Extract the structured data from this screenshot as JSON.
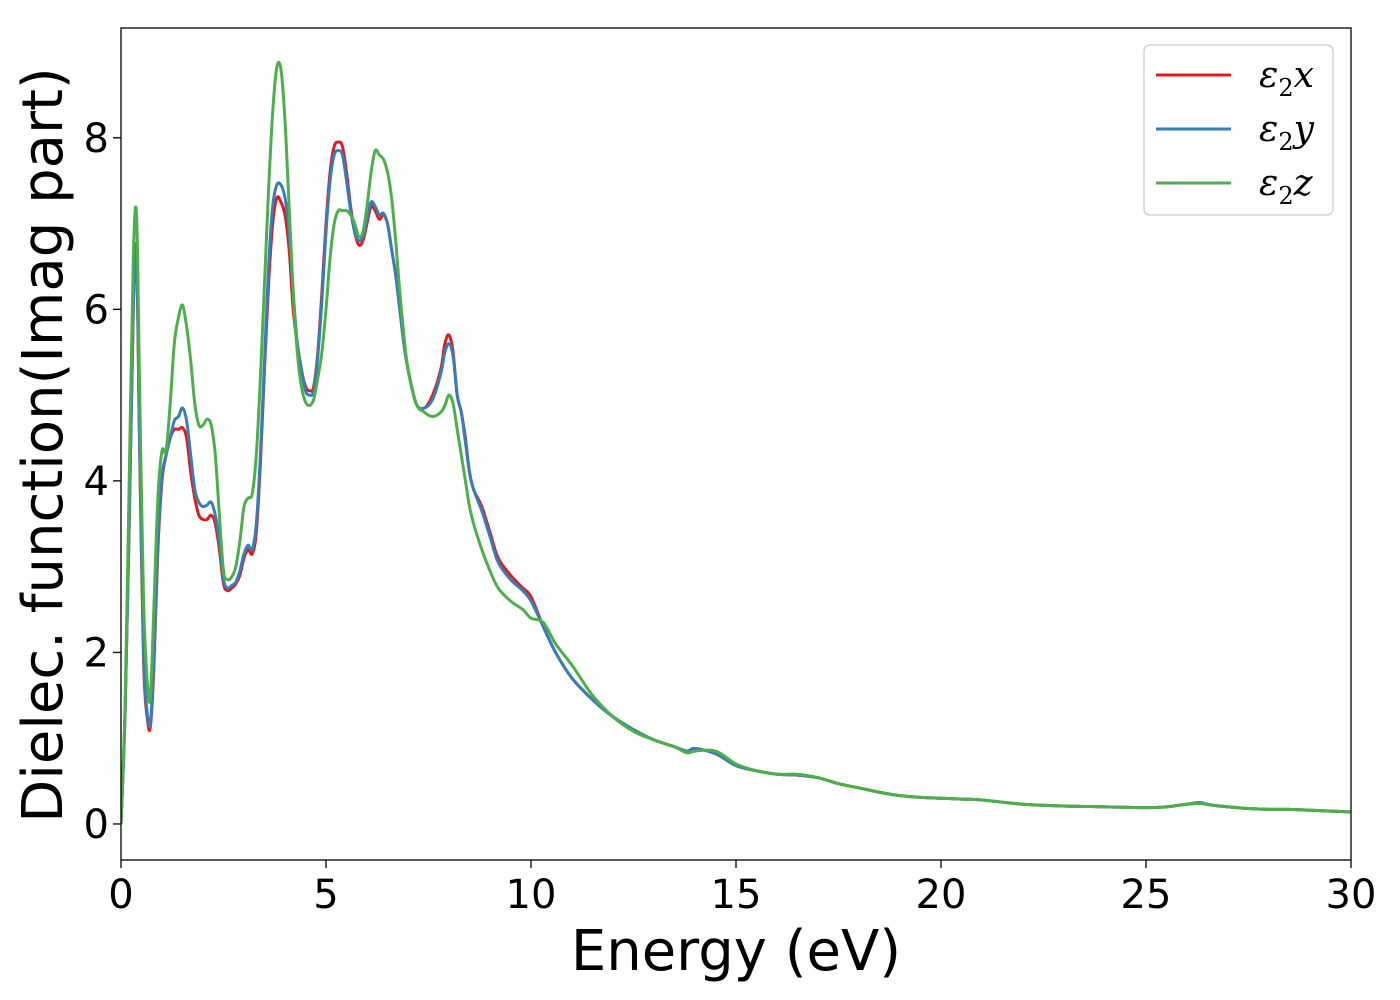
{
  "chart_data": {
    "type": "line",
    "xlabel": "Energy (eV)",
    "ylabel": "Dielec. function(Imag part)",
    "xlim": [
      0,
      30
    ],
    "ylim": [
      -0.42,
      9.28
    ],
    "xticks": [
      0,
      5,
      10,
      15,
      20,
      25,
      30
    ],
    "yticks": [
      0,
      2,
      4,
      6,
      8
    ],
    "grid": false,
    "legend_position": "top-right",
    "series": [
      {
        "name": "ε2x",
        "legend": {
          "base": "ε",
          "sub": "2",
          "var": "x"
        },
        "color": "#e41a1c",
        "x": [
          0,
          0.1,
          0.2,
          0.3,
          0.38,
          0.45,
          0.55,
          0.65,
          0.72,
          0.8,
          0.9,
          1.0,
          1.1,
          1.2,
          1.3,
          1.4,
          1.5,
          1.6,
          1.7,
          1.8,
          1.9,
          2.0,
          2.1,
          2.2,
          2.3,
          2.4,
          2.5,
          2.6,
          2.7,
          2.8,
          2.9,
          3.0,
          3.1,
          3.2,
          3.3,
          3.4,
          3.5,
          3.6,
          3.7,
          3.8,
          3.9,
          4.0,
          4.1,
          4.2,
          4.3,
          4.4,
          4.5,
          4.6,
          4.7,
          4.8,
          4.9,
          5.0,
          5.1,
          5.2,
          5.3,
          5.4,
          5.5,
          5.6,
          5.7,
          5.8,
          5.9,
          6.0,
          6.1,
          6.2,
          6.3,
          6.4,
          6.5,
          6.6,
          6.7,
          6.8,
          6.9,
          7.0,
          7.2,
          7.4,
          7.6,
          7.8,
          7.9,
          8.0,
          8.1,
          8.2,
          8.3,
          8.4,
          8.5,
          8.6,
          8.8,
          9.0,
          9.2,
          9.5,
          9.8,
          10.0,
          10.3,
          10.6,
          11.0,
          11.5,
          12.0,
          12.5,
          13.0,
          13.5,
          13.8,
          14.0,
          14.5,
          15.0,
          15.5,
          16.0,
          16.5,
          17.0,
          17.5,
          18.0,
          18.5,
          19.0,
          19.5,
          20.0,
          20.5,
          21.0,
          22.0,
          23.0,
          24.0,
          25.0,
          25.5,
          26.0,
          26.3,
          26.6,
          27.0,
          27.5,
          28.0,
          28.5,
          29.0,
          29.5,
          30.0
        ],
        "y": [
          0.0,
          1.3,
          3.5,
          6.0,
          6.6,
          4.5,
          1.9,
          1.2,
          1.15,
          1.8,
          3.2,
          4.0,
          4.3,
          4.5,
          4.6,
          4.6,
          4.62,
          4.5,
          4.1,
          3.8,
          3.6,
          3.55,
          3.55,
          3.6,
          3.5,
          3.2,
          2.8,
          2.72,
          2.75,
          2.8,
          2.9,
          3.1,
          3.2,
          3.15,
          3.4,
          4.2,
          5.3,
          6.3,
          7.0,
          7.3,
          7.25,
          7.1,
          6.7,
          6.0,
          5.6,
          5.3,
          5.1,
          5.05,
          5.1,
          5.5,
          6.2,
          7.0,
          7.6,
          7.9,
          7.95,
          7.9,
          7.6,
          7.2,
          6.9,
          6.75,
          6.8,
          7.0,
          7.2,
          7.15,
          7.05,
          7.1,
          7.0,
          6.7,
          6.4,
          6.0,
          5.6,
          5.3,
          4.9,
          4.85,
          5.0,
          5.3,
          5.6,
          5.7,
          5.5,
          5.0,
          4.8,
          4.5,
          4.1,
          3.9,
          3.7,
          3.4,
          3.1,
          2.9,
          2.75,
          2.65,
          2.3,
          2.0,
          1.7,
          1.45,
          1.25,
          1.1,
          0.98,
          0.9,
          0.85,
          0.88,
          0.82,
          0.68,
          0.62,
          0.58,
          0.57,
          0.54,
          0.47,
          0.42,
          0.37,
          0.33,
          0.31,
          0.3,
          0.29,
          0.28,
          0.23,
          0.21,
          0.2,
          0.19,
          0.2,
          0.23,
          0.24,
          0.22,
          0.2,
          0.18,
          0.17,
          0.17,
          0.16,
          0.15,
          0.14
        ]
      },
      {
        "name": "ε2y",
        "legend": {
          "base": "ε",
          "sub": "2",
          "var": "y"
        },
        "color": "#377eb8",
        "x": [
          0,
          0.1,
          0.2,
          0.3,
          0.38,
          0.45,
          0.55,
          0.65,
          0.72,
          0.8,
          0.9,
          1.0,
          1.1,
          1.2,
          1.3,
          1.4,
          1.5,
          1.6,
          1.7,
          1.8,
          1.9,
          2.0,
          2.1,
          2.2,
          2.3,
          2.4,
          2.5,
          2.6,
          2.7,
          2.8,
          2.9,
          3.0,
          3.1,
          3.2,
          3.3,
          3.4,
          3.5,
          3.6,
          3.7,
          3.8,
          3.9,
          4.0,
          4.1,
          4.2,
          4.3,
          4.4,
          4.5,
          4.6,
          4.7,
          4.8,
          4.9,
          5.0,
          5.1,
          5.2,
          5.3,
          5.4,
          5.5,
          5.6,
          5.7,
          5.8,
          5.9,
          6.0,
          6.1,
          6.2,
          6.3,
          6.4,
          6.5,
          6.6,
          6.7,
          6.8,
          6.9,
          7.0,
          7.2,
          7.4,
          7.6,
          7.8,
          7.9,
          8.0,
          8.1,
          8.2,
          8.3,
          8.4,
          8.5,
          8.6,
          8.8,
          9.0,
          9.2,
          9.5,
          9.8,
          10.0,
          10.3,
          10.6,
          11.0,
          11.5,
          12.0,
          12.5,
          13.0,
          13.5,
          13.8,
          14.0,
          14.5,
          15.0,
          15.5,
          16.0,
          16.5,
          17.0,
          17.5,
          18.0,
          18.5,
          19.0,
          19.5,
          20.0,
          20.5,
          21.0,
          22.0,
          23.0,
          24.0,
          25.0,
          25.5,
          26.0,
          26.3,
          26.6,
          27.0,
          27.5,
          28.0,
          28.5,
          29.0,
          29.5,
          30.0
        ],
        "y": [
          0.0,
          1.3,
          3.5,
          6.0,
          6.7,
          4.6,
          2.0,
          1.25,
          1.2,
          1.9,
          3.3,
          4.05,
          4.3,
          4.5,
          4.7,
          4.75,
          4.85,
          4.7,
          4.3,
          3.9,
          3.75,
          3.7,
          3.72,
          3.75,
          3.6,
          3.3,
          2.85,
          2.75,
          2.78,
          2.82,
          2.95,
          3.15,
          3.25,
          3.2,
          3.5,
          4.3,
          5.4,
          6.5,
          7.2,
          7.45,
          7.45,
          7.3,
          6.9,
          6.2,
          5.6,
          5.3,
          5.05,
          5.0,
          5.05,
          5.45,
          6.1,
          6.9,
          7.5,
          7.8,
          7.85,
          7.8,
          7.5,
          7.15,
          6.9,
          6.8,
          6.85,
          7.05,
          7.25,
          7.2,
          7.1,
          7.12,
          7.0,
          6.7,
          6.4,
          6.0,
          5.6,
          5.3,
          4.9,
          4.85,
          4.95,
          5.25,
          5.5,
          5.6,
          5.45,
          5.0,
          4.8,
          4.45,
          4.1,
          3.9,
          3.65,
          3.35,
          3.05,
          2.85,
          2.72,
          2.6,
          2.3,
          2.0,
          1.7,
          1.45,
          1.25,
          1.1,
          0.98,
          0.9,
          0.85,
          0.88,
          0.82,
          0.68,
          0.62,
          0.58,
          0.57,
          0.54,
          0.47,
          0.42,
          0.37,
          0.33,
          0.31,
          0.3,
          0.29,
          0.28,
          0.23,
          0.21,
          0.2,
          0.19,
          0.2,
          0.23,
          0.25,
          0.22,
          0.2,
          0.18,
          0.17,
          0.17,
          0.16,
          0.15,
          0.14
        ]
      },
      {
        "name": "ε2z",
        "legend": {
          "base": "ε",
          "sub": "2",
          "var": "z"
        },
        "color": "#4daf4a",
        "x": [
          0,
          0.1,
          0.2,
          0.3,
          0.38,
          0.45,
          0.55,
          0.65,
          0.72,
          0.8,
          0.9,
          1.0,
          1.1,
          1.2,
          1.3,
          1.4,
          1.5,
          1.6,
          1.7,
          1.8,
          1.9,
          2.0,
          2.1,
          2.2,
          2.3,
          2.4,
          2.5,
          2.6,
          2.7,
          2.8,
          2.9,
          3.0,
          3.1,
          3.2,
          3.3,
          3.4,
          3.5,
          3.6,
          3.7,
          3.8,
          3.9,
          4.0,
          4.1,
          4.2,
          4.3,
          4.4,
          4.5,
          4.6,
          4.7,
          4.8,
          4.9,
          5.0,
          5.1,
          5.2,
          5.3,
          5.4,
          5.5,
          5.6,
          5.7,
          5.8,
          5.9,
          6.0,
          6.1,
          6.2,
          6.3,
          6.4,
          6.5,
          6.6,
          6.7,
          6.8,
          6.9,
          7.0,
          7.2,
          7.4,
          7.6,
          7.8,
          7.9,
          8.0,
          8.1,
          8.2,
          8.3,
          8.4,
          8.5,
          8.6,
          8.8,
          9.0,
          9.2,
          9.5,
          9.8,
          10.0,
          10.3,
          10.6,
          11.0,
          11.5,
          12.0,
          12.5,
          13.0,
          13.5,
          13.8,
          14.0,
          14.5,
          15.0,
          15.5,
          16.0,
          16.5,
          17.0,
          17.5,
          18.0,
          18.5,
          19.0,
          19.5,
          20.0,
          20.5,
          21.0,
          22.0,
          23.0,
          24.0,
          25.0,
          25.5,
          26.0,
          26.3,
          26.6,
          27.0,
          27.5,
          28.0,
          28.5,
          29.0,
          29.5,
          30.0
        ],
        "y": [
          0.0,
          1.4,
          4.0,
          6.6,
          7.1,
          5.2,
          2.6,
          1.6,
          1.5,
          2.5,
          3.8,
          4.35,
          4.35,
          4.9,
          5.6,
          5.9,
          6.05,
          5.8,
          5.4,
          4.9,
          4.65,
          4.65,
          4.72,
          4.65,
          4.3,
          3.6,
          2.95,
          2.85,
          2.88,
          3.0,
          3.3,
          3.7,
          3.8,
          3.85,
          4.3,
          5.2,
          6.3,
          7.4,
          8.3,
          8.82,
          8.8,
          8.2,
          7.2,
          6.2,
          5.5,
          5.1,
          4.92,
          4.88,
          4.95,
          5.2,
          5.5,
          6.0,
          6.6,
          7.0,
          7.15,
          7.15,
          7.15,
          7.1,
          7.0,
          6.85,
          6.9,
          7.2,
          7.6,
          7.85,
          7.8,
          7.75,
          7.6,
          7.3,
          6.8,
          6.2,
          5.7,
          5.3,
          4.9,
          4.8,
          4.75,
          4.8,
          4.88,
          5.0,
          4.9,
          4.6,
          4.3,
          4.0,
          3.7,
          3.5,
          3.2,
          2.95,
          2.75,
          2.6,
          2.5,
          2.4,
          2.35,
          2.1,
          1.85,
          1.5,
          1.25,
          1.08,
          0.98,
          0.9,
          0.83,
          0.85,
          0.85,
          0.7,
          0.62,
          0.58,
          0.58,
          0.54,
          0.47,
          0.42,
          0.37,
          0.33,
          0.31,
          0.3,
          0.29,
          0.28,
          0.23,
          0.21,
          0.2,
          0.19,
          0.2,
          0.23,
          0.24,
          0.22,
          0.2,
          0.18,
          0.17,
          0.17,
          0.16,
          0.15,
          0.14
        ]
      }
    ]
  }
}
